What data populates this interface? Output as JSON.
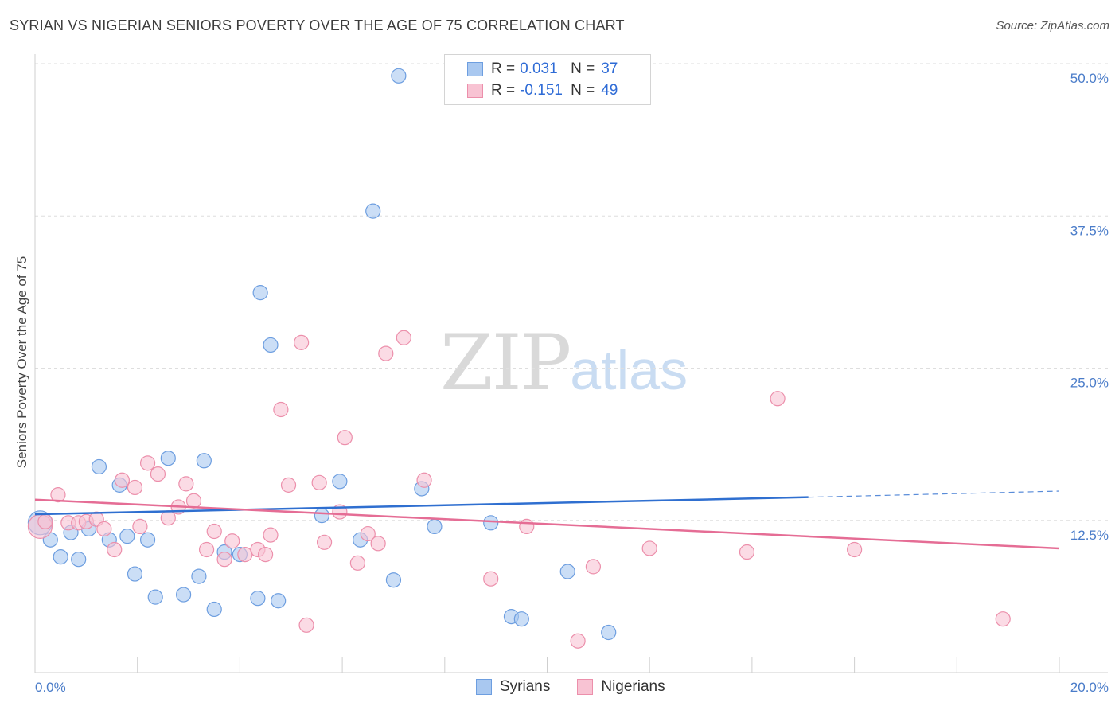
{
  "title": "SYRIAN VS NIGERIAN SENIORS POVERTY OVER THE AGE OF 75 CORRELATION CHART",
  "source": "Source: ZipAtlas.com",
  "watermark": {
    "zip": "ZIP",
    "atlas": "atlas"
  },
  "legend": {
    "rows": [
      {
        "r_label": "R =",
        "r_value": "0.031",
        "n_label": "N =",
        "n_value": "37",
        "color": "#a9c8f0",
        "border": "#6d9ee0"
      },
      {
        "r_label": "R =",
        "r_value": "-0.151",
        "n_label": "N =",
        "n_value": "49",
        "color": "#f8c3d3",
        "border": "#ec8fab"
      }
    ]
  },
  "bottom_legend": [
    {
      "label": "Syrians",
      "color": "#a9c8f0",
      "border": "#6d9ee0"
    },
    {
      "label": "Nigerians",
      "color": "#f8c3d3",
      "border": "#ec8fab"
    }
  ],
  "chart_data": {
    "type": "scatter",
    "title": "SYRIAN VS NIGERIAN SENIORS POVERTY OVER THE AGE OF 75 CORRELATION CHART",
    "xlabel": "",
    "ylabel": "Seniors Poverty Over the Age of 75",
    "xlim": [
      0,
      20
    ],
    "ylim": [
      0,
      50
    ],
    "x_tick_labels": [
      "0.0%",
      "20.0%"
    ],
    "y_ticks": [
      12.5,
      25.0,
      37.5,
      50.0
    ],
    "y_tick_labels": [
      "12.5%",
      "25.0%",
      "37.5%",
      "50.0%"
    ],
    "grid": true,
    "legend_position": "top-center",
    "colors": {
      "syrians": "#4a88d8",
      "nigerians": "#e56d95"
    },
    "series": [
      {
        "name": "Syrians",
        "color": "#a9c8f0",
        "edge": "#6d9ee0",
        "points": [
          [
            0.1,
            12.3
          ],
          [
            0.3,
            10.9
          ],
          [
            0.5,
            9.5
          ],
          [
            0.7,
            11.5
          ],
          [
            0.85,
            9.3
          ],
          [
            1.05,
            11.8
          ],
          [
            1.25,
            16.9
          ],
          [
            1.45,
            10.9
          ],
          [
            1.65,
            15.4
          ],
          [
            1.8,
            11.2
          ],
          [
            1.95,
            8.1
          ],
          [
            2.2,
            10.9
          ],
          [
            2.35,
            6.2
          ],
          [
            2.6,
            17.6
          ],
          [
            2.9,
            6.4
          ],
          [
            3.2,
            7.9
          ],
          [
            3.3,
            17.4
          ],
          [
            3.5,
            5.2
          ],
          [
            3.7,
            9.9
          ],
          [
            4.0,
            9.7
          ],
          [
            4.35,
            6.1
          ],
          [
            4.4,
            31.2
          ],
          [
            4.6,
            26.9
          ],
          [
            4.75,
            5.9
          ],
          [
            5.6,
            12.9
          ],
          [
            5.95,
            15.7
          ],
          [
            6.35,
            10.9
          ],
          [
            6.6,
            37.9
          ],
          [
            7.1,
            49.0
          ],
          [
            7.0,
            7.6
          ],
          [
            7.55,
            15.1
          ],
          [
            7.8,
            12.0
          ],
          [
            8.9,
            12.3
          ],
          [
            9.3,
            4.6
          ],
          [
            9.5,
            4.4
          ],
          [
            10.4,
            8.3
          ],
          [
            11.2,
            3.3
          ]
        ]
      },
      {
        "name": "Nigerians",
        "color": "#f8c3d3",
        "edge": "#ec8fab",
        "points": [
          [
            0.1,
            12.0
          ],
          [
            0.2,
            12.4
          ],
          [
            0.45,
            14.6
          ],
          [
            0.65,
            12.3
          ],
          [
            0.85,
            12.3
          ],
          [
            1.0,
            12.4
          ],
          [
            1.2,
            12.6
          ],
          [
            1.35,
            11.8
          ],
          [
            1.55,
            10.1
          ],
          [
            1.7,
            15.8
          ],
          [
            1.95,
            15.2
          ],
          [
            2.05,
            12.0
          ],
          [
            2.2,
            17.2
          ],
          [
            2.4,
            16.3
          ],
          [
            2.6,
            12.7
          ],
          [
            2.8,
            13.6
          ],
          [
            2.95,
            15.5
          ],
          [
            3.1,
            14.1
          ],
          [
            3.35,
            10.1
          ],
          [
            3.5,
            11.6
          ],
          [
            3.7,
            9.3
          ],
          [
            3.85,
            10.8
          ],
          [
            4.1,
            9.7
          ],
          [
            4.35,
            10.1
          ],
          [
            4.5,
            9.7
          ],
          [
            4.6,
            11.3
          ],
          [
            4.8,
            21.6
          ],
          [
            4.95,
            15.4
          ],
          [
            5.2,
            27.1
          ],
          [
            5.3,
            3.9
          ],
          [
            5.55,
            15.6
          ],
          [
            5.65,
            10.7
          ],
          [
            5.95,
            13.2
          ],
          [
            6.05,
            19.3
          ],
          [
            6.3,
            9.0
          ],
          [
            6.5,
            11.4
          ],
          [
            6.7,
            10.6
          ],
          [
            6.85,
            26.2
          ],
          [
            7.2,
            27.5
          ],
          [
            7.6,
            15.8
          ],
          [
            8.9,
            7.7
          ],
          [
            9.6,
            12.0
          ],
          [
            10.6,
            2.6
          ],
          [
            10.9,
            8.7
          ],
          [
            12.0,
            10.2
          ],
          [
            13.9,
            9.9
          ],
          [
            14.5,
            22.5
          ],
          [
            16.0,
            10.1
          ],
          [
            18.9,
            4.4
          ]
        ]
      }
    ],
    "trend_lines": [
      {
        "series": "Syrians",
        "color": "#2f6fd0",
        "x": [
          0,
          15.1
        ],
        "y": [
          13.0,
          14.4
        ],
        "dashed_extension": [
          15.1,
          20
        ],
        "dashed_y_end": 14.9
      },
      {
        "series": "Nigerians",
        "color": "#e56d95",
        "x": [
          0,
          20
        ],
        "y": [
          14.2,
          10.2
        ]
      }
    ]
  }
}
